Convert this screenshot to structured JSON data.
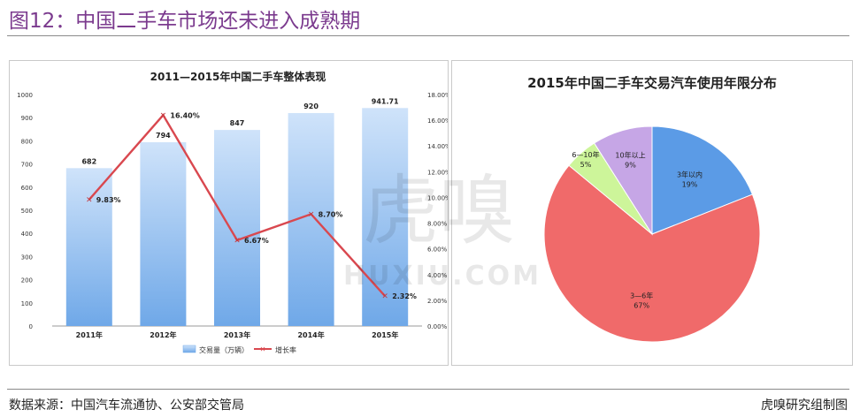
{
  "header": {
    "title": "图12：中国二手车市场还未进入成熟期"
  },
  "footer": {
    "source": "数据来源：中国汽车流通协、公安部交管局",
    "credit": "虎嗅研究组制图"
  },
  "watermark": {
    "glyphs": "虎嗅",
    "url": "HUXIU.COM"
  },
  "colors": {
    "title": "#7b3a8e",
    "bar": "#7fb3ea",
    "line": "#d9484f",
    "pie_blue": "#5b9be6",
    "pie_red": "#f06a6a",
    "pie_green": "#cdf59a",
    "pie_purple": "#c6a6e6"
  },
  "chart_data": [
    {
      "type": "bar",
      "title": "2011—2015年中国二手车整体表现",
      "categories": [
        "2011年",
        "2012年",
        "2013年",
        "2014年",
        "2015年"
      ],
      "series": [
        {
          "name": "交易量（万辆）",
          "type": "bar",
          "axis": "left",
          "values": [
            682,
            794,
            847,
            920,
            941.71
          ],
          "labels": [
            "682",
            "794",
            "847",
            "920",
            "941.71"
          ]
        },
        {
          "name": "增长率",
          "type": "line",
          "axis": "right",
          "values": [
            9.83,
            16.4,
            6.67,
            8.7,
            2.32
          ],
          "labels": [
            "9.83%",
            "16.40%",
            "6.67%",
            "8.70%",
            "2.32%"
          ]
        }
      ],
      "ylim": [
        0,
        1000
      ],
      "yticks": [
        "0",
        "100",
        "200",
        "300",
        "400",
        "500",
        "600",
        "700",
        "800",
        "900",
        "1000"
      ],
      "y2lim": [
        0,
        18
      ],
      "y2ticks": [
        "0.00%",
        "2.00%",
        "4.00%",
        "6.00%",
        "8.00%",
        "10.00%",
        "12.00%",
        "14.00%",
        "16.00%",
        "18.00%"
      ],
      "legend_position": "bottom",
      "grid": false
    },
    {
      "type": "pie",
      "title": "2015年中国二手车交易汽车使用年限分布",
      "slices": [
        {
          "label": "3年以内",
          "value": 19,
          "pct": "19%"
        },
        {
          "label": "3—6年",
          "value": 67,
          "pct": "67%"
        },
        {
          "label": "6—10年",
          "value": 5,
          "pct": "5%"
        },
        {
          "label": "10年以上",
          "value": 9,
          "pct": "9%"
        }
      ],
      "legend_position": "none"
    }
  ]
}
